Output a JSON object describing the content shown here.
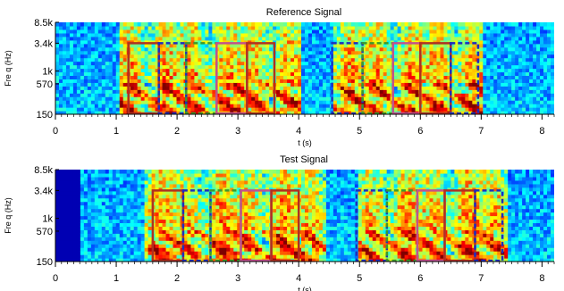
{
  "chart_data": [
    {
      "type": "heatmap",
      "title": "Reference Signal",
      "xlabel": "t (s)",
      "ylabel": "Fre q (Hz)",
      "xlim": [
        0,
        8.2
      ],
      "x_ticks": [
        0,
        1,
        2,
        3,
        4,
        5,
        6,
        7,
        8
      ],
      "x_tick_labels": [
        "0",
        "1",
        "2",
        "3",
        "4",
        "5",
        "6",
        "7",
        "8"
      ],
      "y_scale": "log",
      "ylim": [
        150,
        8500
      ],
      "y_ticks": [
        150,
        570,
        1000,
        3400,
        8500
      ],
      "y_tick_labels": [
        "150",
        "570",
        "1k",
        "3.4k",
        "8.5k"
      ],
      "lead_silence_s": 0,
      "speech_segments": [
        [
          1.05,
          4.05
        ],
        [
          4.55,
          7.05
        ]
      ],
      "boxes": [
        {
          "start": 1.2,
          "end": 1.7,
          "low": 150,
          "high": 3400,
          "color": "#b03020",
          "style": "solid"
        },
        {
          "start": 1.7,
          "end": 2.15,
          "low": 150,
          "high": 3400,
          "color": "#1c2dbf",
          "style": "dashed"
        },
        {
          "start": 2.15,
          "end": 2.65,
          "low": 150,
          "high": 3400,
          "color": "#3c9a2a",
          "style": "dashed"
        },
        {
          "start": 2.65,
          "end": 3.15,
          "low": 150,
          "high": 3400,
          "color": "#c2518c",
          "style": "solid"
        },
        {
          "start": 3.15,
          "end": 3.6,
          "low": 150,
          "high": 3400,
          "color": "#b03020",
          "style": "solid"
        },
        {
          "start": 4.55,
          "end": 5.05,
          "low": 150,
          "high": 3400,
          "color": "#1c2dbf",
          "style": "dashed"
        },
        {
          "start": 5.05,
          "end": 5.55,
          "low": 150,
          "high": 3400,
          "color": "#3c9a2a",
          "style": "dashed"
        },
        {
          "start": 5.55,
          "end": 6.0,
          "low": 150,
          "high": 3400,
          "color": "#c2518c",
          "style": "solid"
        },
        {
          "start": 6.0,
          "end": 6.5,
          "low": 150,
          "high": 3400,
          "color": "#b03020",
          "style": "solid"
        },
        {
          "start": 6.5,
          "end": 6.95,
          "low": 150,
          "high": 3400,
          "color": "#1c2dbf",
          "style": "dashed"
        }
      ]
    },
    {
      "type": "heatmap",
      "title": "Test Signal",
      "xlabel": "t (s)",
      "ylabel": "Fre q (Hz)",
      "xlim": [
        0,
        8.2
      ],
      "x_ticks": [
        0,
        1,
        2,
        3,
        4,
        5,
        6,
        7,
        8
      ],
      "x_tick_labels": [
        "0",
        "1",
        "2",
        "3",
        "4",
        "5",
        "6",
        "7",
        "8"
      ],
      "y_scale": "log",
      "ylim": [
        150,
        8500
      ],
      "y_ticks": [
        150,
        570,
        1000,
        3400,
        8500
      ],
      "y_tick_labels": [
        "150",
        "570",
        "1k",
        "3.4k",
        "8.5k"
      ],
      "lead_silence_s": 0.4,
      "speech_segments": [
        [
          1.45,
          4.45
        ],
        [
          4.95,
          7.45
        ]
      ],
      "boxes": [
        {
          "start": 1.6,
          "end": 2.1,
          "low": 150,
          "high": 3400,
          "color": "#b03020",
          "style": "solid"
        },
        {
          "start": 2.1,
          "end": 2.55,
          "low": 150,
          "high": 3400,
          "color": "#1c2dbf",
          "style": "dashed"
        },
        {
          "start": 2.55,
          "end": 3.05,
          "low": 150,
          "high": 3400,
          "color": "#3c9a2a",
          "style": "dashed"
        },
        {
          "start": 3.05,
          "end": 3.55,
          "low": 150,
          "high": 3400,
          "color": "#c2518c",
          "style": "solid"
        },
        {
          "start": 3.55,
          "end": 4.0,
          "low": 150,
          "high": 3400,
          "color": "#b03020",
          "style": "solid"
        },
        {
          "start": 4.95,
          "end": 5.45,
          "low": 150,
          "high": 3400,
          "color": "#1c2dbf",
          "style": "dashed"
        },
        {
          "start": 5.45,
          "end": 5.95,
          "low": 150,
          "high": 3400,
          "color": "#3c9a2a",
          "style": "dashed"
        },
        {
          "start": 5.95,
          "end": 6.4,
          "low": 150,
          "high": 3400,
          "color": "#c2518c",
          "style": "solid"
        },
        {
          "start": 6.4,
          "end": 6.9,
          "low": 150,
          "high": 3400,
          "color": "#b03020",
          "style": "solid"
        },
        {
          "start": 6.9,
          "end": 7.35,
          "low": 150,
          "high": 3400,
          "color": "#1c2dbf",
          "style": "dashed"
        }
      ]
    }
  ]
}
